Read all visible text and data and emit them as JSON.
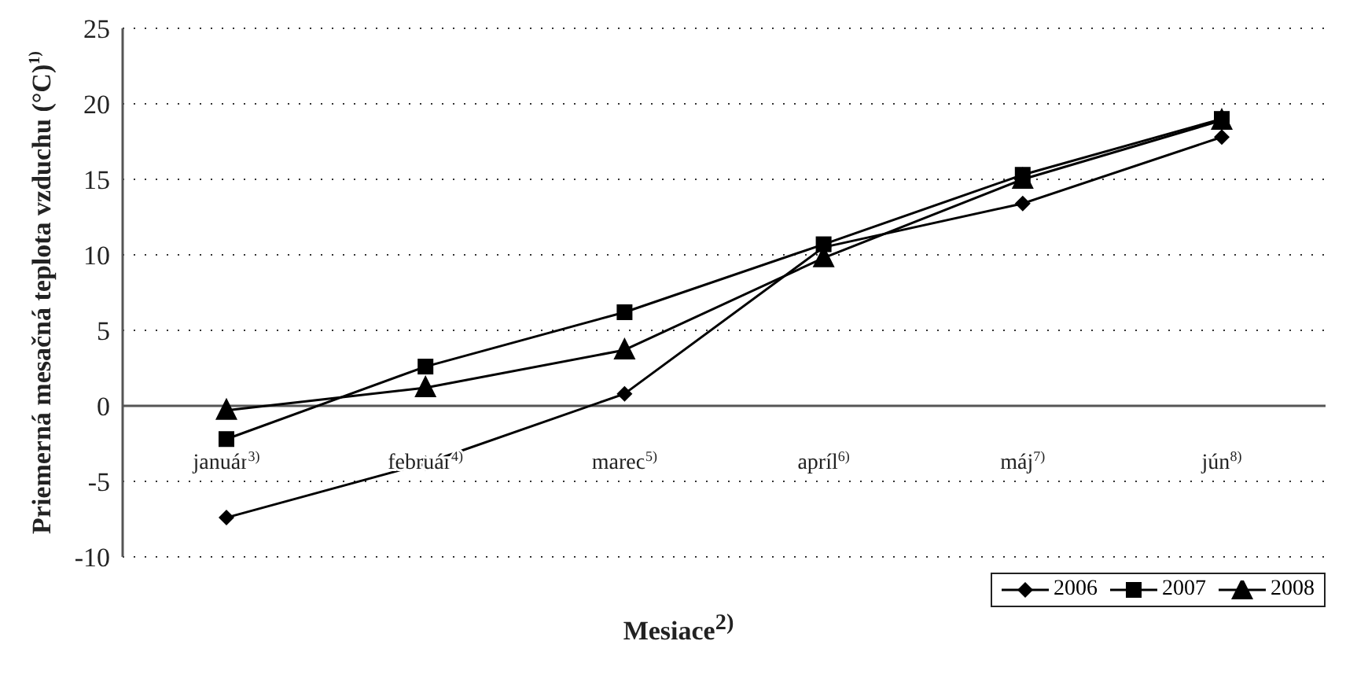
{
  "chart_data": {
    "type": "line",
    "ylabel": "Priemerná mesačná teplota vzduchu (°C)$^{1)}$",
    "xlabel": "Mesiace$^{2)}$",
    "categories": [
      "január$^{3)}$",
      "február$^{4)}$",
      "marec$^{5)}$",
      "apríl$^{6)}$",
      "máj$^{7)}$",
      "jún$^{8)}$"
    ],
    "series": [
      {
        "name": "2006",
        "color": "#000000",
        "marker": "diamond",
        "values": [
          -7.4,
          -3.8,
          0.8,
          10.5,
          13.4,
          17.8
        ]
      },
      {
        "name": "2007",
        "color": "#000000",
        "marker": "square",
        "values": [
          -2.2,
          2.6,
          6.2,
          10.7,
          15.3,
          19.0
        ]
      },
      {
        "name": "2008",
        "color": "#000000",
        "marker": "triangle",
        "values": [
          -0.3,
          1.2,
          3.7,
          9.8,
          15.0,
          18.9
        ]
      }
    ],
    "ylim": [
      -10,
      25
    ],
    "yticks": [
      -10,
      -5,
      0,
      5,
      10,
      15,
      20,
      25
    ],
    "grid": "y",
    "legend": "bottom right",
    "line_style": "solid"
  }
}
